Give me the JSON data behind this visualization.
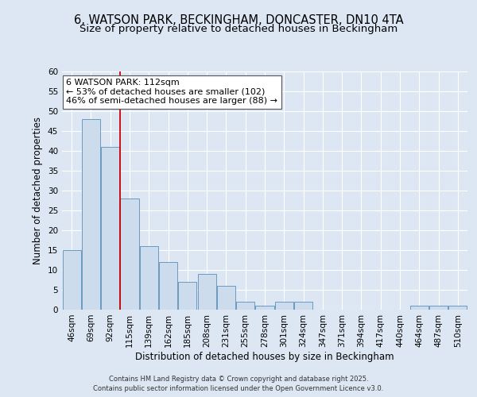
{
  "title1": "6, WATSON PARK, BECKINGHAM, DONCASTER, DN10 4TA",
  "title2": "Size of property relative to detached houses in Beckingham",
  "xlabel": "Distribution of detached houses by size in Beckingham",
  "ylabel": "Number of detached properties",
  "bar_labels": [
    "46sqm",
    "69sqm",
    "92sqm",
    "115sqm",
    "139sqm",
    "162sqm",
    "185sqm",
    "208sqm",
    "231sqm",
    "255sqm",
    "278sqm",
    "301sqm",
    "324sqm",
    "347sqm",
    "371sqm",
    "394sqm",
    "417sqm",
    "440sqm",
    "464sqm",
    "487sqm",
    "510sqm"
  ],
  "bar_values": [
    15,
    48,
    41,
    28,
    16,
    12,
    7,
    9,
    6,
    2,
    1,
    2,
    2,
    0,
    0,
    0,
    0,
    0,
    1,
    1,
    1
  ],
  "bar_color": "#cddcec",
  "bar_edge_color": "#6a9abf",
  "vline_color": "#cc0000",
  "vline_x": 2.5,
  "annotation_text": "6 WATSON PARK: 112sqm\n← 53% of detached houses are smaller (102)\n46% of semi-detached houses are larger (88) →",
  "annotation_box_color": "#ffffff",
  "annotation_box_edge": "#555555",
  "ylim": [
    0,
    60
  ],
  "yticks": [
    0,
    5,
    10,
    15,
    20,
    25,
    30,
    35,
    40,
    45,
    50,
    55,
    60
  ],
  "background_color": "#dce7f3",
  "plot_background": "#dce7f3",
  "footer1": "Contains HM Land Registry data © Crown copyright and database right 2025.",
  "footer2": "Contains public sector information licensed under the Open Government Licence v3.0.",
  "title_fontsize": 10.5,
  "subtitle_fontsize": 9.5,
  "axis_label_fontsize": 8.5,
  "tick_fontsize": 7.5,
  "annotation_fontsize": 8,
  "grid_color": "#ffffff"
}
